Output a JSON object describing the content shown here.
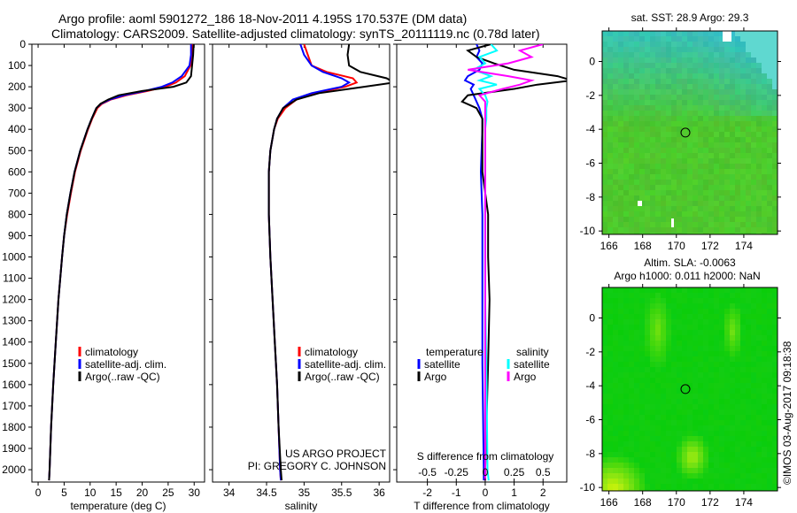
{
  "header": {
    "title_line1": "Argo profile: aoml 5901272_186 18-Nov-2011 4.195S 170.537E (DM data)",
    "title_line2": "Climatology: CARS2009. Satellite-adjusted climatology: synTS_20111119.nc (0.78d later)"
  },
  "credits": {
    "project": "US ARGO PROJECT",
    "pi": "PI: GREGORY C. JOHNSON",
    "stamp": "©IMOS 03-Aug-2017 09:18:38"
  },
  "colors": {
    "clim": "#ff0000",
    "sat": "#0000ff",
    "argo": "#000000",
    "sal_sat": "#00ffff",
    "sal_argo": "#ff00ff",
    "map_sst": "#22d060",
    "map_sla": "#20d800"
  },
  "chart_data": [
    {
      "type": "line",
      "id": "temperature",
      "xlabel": "temperature (deg C)",
      "ylabel": "depth",
      "xlim": [
        -1.2,
        32
      ],
      "ylim": [
        2058,
        0
      ],
      "xticks": [
        0,
        5,
        10,
        15,
        20,
        25,
        30
      ],
      "yticks": [
        0,
        100,
        200,
        300,
        400,
        500,
        600,
        700,
        800,
        900,
        1000,
        1100,
        1200,
        1300,
        1400,
        1500,
        1600,
        1700,
        1800,
        1900,
        2000
      ],
      "legend": [
        "climatology",
        "satellite-adj. clim.",
        "Argo(..raw -QC)"
      ],
      "depth": [
        0,
        50,
        100,
        150,
        180,
        200,
        220,
        240,
        260,
        280,
        300,
        350,
        400,
        500,
        600,
        700,
        800,
        900,
        1000,
        1200,
        1400,
        1600,
        1800,
        2000,
        2050
      ],
      "series": [
        {
          "name": "climatology",
          "color": "#ff0000",
          "values": [
            29.7,
            29.6,
            29.3,
            28.2,
            26.5,
            24.5,
            21,
            17,
            14,
            12.3,
            11.4,
            10.4,
            9.6,
            8.2,
            7.1,
            6.3,
            5.6,
            5.0,
            4.6,
            3.9,
            3.4,
            2.9,
            2.5,
            2.2,
            2.1
          ]
        },
        {
          "name": "satellite-adj. clim.",
          "color": "#0000ff",
          "values": [
            29.4,
            29.4,
            29.1,
            27.6,
            25.8,
            23.8,
            20.5,
            16.5,
            13.8,
            12.1,
            11.2,
            10.3,
            9.5,
            8.1,
            7.0,
            6.2,
            5.5,
            5.0,
            4.6,
            3.9,
            3.4,
            2.9,
            2.5,
            2.2,
            2.1
          ]
        },
        {
          "name": "Argo(..raw -QC)",
          "color": "#000000",
          "values": [
            29.9,
            29.8,
            29.6,
            29.4,
            28.5,
            26,
            20,
            15.5,
            13.5,
            12,
            11.2,
            10.3,
            9.5,
            8.1,
            7.0,
            6.2,
            5.5,
            5.0,
            4.6,
            3.9,
            3.4,
            2.9,
            2.5,
            2.2,
            2.1
          ]
        }
      ]
    },
    {
      "type": "line",
      "id": "salinity",
      "xlabel": "salinity",
      "ylabel": "depth",
      "xlim": [
        33.78,
        36.14
      ],
      "ylim": [
        2058,
        0
      ],
      "xticks": [
        34,
        34.5,
        35,
        35.5,
        36
      ],
      "legend": [
        "climatology",
        "satellite-adj. clim.",
        "Argo(..raw -QC)"
      ],
      "depth": [
        0,
        50,
        100,
        130,
        160,
        180,
        200,
        230,
        260,
        300,
        350,
        400,
        500,
        600,
        800,
        1000,
        1200,
        1400,
        1600,
        1800,
        2000,
        2050
      ],
      "series": [
        {
          "name": "climatology",
          "color": "#ff0000",
          "values": [
            35.0,
            35.05,
            35.1,
            35.3,
            35.65,
            35.7,
            35.55,
            35.15,
            34.9,
            34.75,
            34.65,
            34.6,
            34.55,
            34.53,
            34.53,
            34.55,
            34.58,
            34.61,
            34.64,
            34.66,
            34.68,
            34.69
          ]
        },
        {
          "name": "satellite-adj. clim.",
          "color": "#0000ff",
          "values": [
            34.95,
            35.0,
            35.1,
            35.25,
            35.5,
            35.6,
            35.5,
            35.1,
            34.85,
            34.72,
            34.64,
            34.6,
            34.55,
            34.53,
            34.53,
            34.55,
            34.58,
            34.61,
            34.64,
            34.66,
            34.68,
            34.69
          ]
        },
        {
          "name": "Argo(..raw -QC)",
          "color": "#000000",
          "values": [
            35.6,
            35.58,
            35.6,
            35.75,
            36.1,
            36.2,
            35.8,
            35.2,
            34.9,
            34.72,
            34.64,
            34.6,
            34.55,
            34.53,
            34.53,
            34.55,
            34.58,
            34.61,
            34.64,
            34.66,
            34.69,
            34.7
          ]
        }
      ]
    },
    {
      "type": "line",
      "id": "difference",
      "xlabel": "T difference from climatology",
      "x2label": "S difference from climatology",
      "xlim": [
        -3.06,
        2.82
      ],
      "x2lim": [
        -0.765,
        0.705
      ],
      "ylim": [
        2058,
        0
      ],
      "xticks": [
        -2,
        -1,
        0,
        1,
        2
      ],
      "x2ticks": [
        -0.5,
        -0.25,
        0,
        0.25,
        0.5
      ],
      "legend_headers": [
        "temperature",
        "salinity"
      ],
      "legend": [
        "satellite",
        "Argo",
        "satellite",
        "Argo"
      ],
      "depth": [
        0,
        30,
        60,
        90,
        120,
        150,
        170,
        190,
        210,
        240,
        270,
        300,
        350,
        400,
        600,
        800,
        1000,
        1200,
        1500,
        2000,
        2050
      ],
      "series": [
        {
          "name": "T satellite",
          "axis": "T",
          "color": "#0000ff",
          "values": [
            -0.3,
            -0.2,
            -0.3,
            -0.1,
            -0.2,
            -0.6,
            -0.7,
            -0.4,
            -0.5,
            -0.4,
            -0.3,
            -0.2,
            -0.1,
            -0.1,
            -0.15,
            -0.1,
            -0.1,
            -0.1,
            -0.1,
            -0.05,
            -0.05
          ]
        },
        {
          "name": "T Argo",
          "axis": "T",
          "color": "#000000",
          "values": [
            0.2,
            -0.6,
            -0.3,
            0.3,
            1.0,
            2.5,
            3,
            1.8,
            1.0,
            -0.6,
            -0.8,
            -0.3,
            -0.1,
            -0.1,
            -0.1,
            0.1,
            0.1,
            0.15,
            0.1,
            0.0,
            0.0
          ]
        },
        {
          "name": "S satellite",
          "axis": "S",
          "color": "#00ffff",
          "values": [
            0.05,
            0.1,
            -0.05,
            0.0,
            -0.1,
            0.05,
            -0.05,
            0.1,
            -0.05,
            0.0,
            0.02,
            0.01,
            0.01,
            0.0,
            0.0,
            0.0,
            0.0,
            0.0,
            0.01,
            0.02,
            0.03
          ]
        },
        {
          "name": "S Argo",
          "axis": "S",
          "color": "#ff00ff",
          "values": [
            0.5,
            0.3,
            0.4,
            0.2,
            -0.15,
            0.2,
            0.4,
            0.3,
            0.15,
            -0.05,
            0.0,
            0.0,
            0.0,
            0.0,
            0.0,
            0.0,
            0.0,
            0.0,
            0.0,
            0.0,
            0.0
          ]
        }
      ]
    },
    {
      "type": "heatmap",
      "id": "sst_map",
      "title": "sat. SST: 28.9 Argo: 29.3",
      "xlim": [
        165.6,
        176
      ],
      "ylim": [
        -10.2,
        1.8
      ],
      "xticks": [
        166,
        168,
        170,
        172,
        174
      ],
      "yticks": [
        0,
        -2,
        -4,
        -6,
        -8,
        -10
      ],
      "marker": {
        "lon": 170.537,
        "lat": -4.195
      }
    },
    {
      "type": "heatmap",
      "id": "sla_map",
      "title": "Altim. SLA: -0.0063",
      "subtitle": "Argo h1000: 0.011 h2000: NaN",
      "xlim": [
        165.6,
        176
      ],
      "ylim": [
        -10.2,
        1.8
      ],
      "xticks": [
        166,
        168,
        170,
        172,
        174
      ],
      "yticks": [
        0,
        -2,
        -4,
        -6,
        -8,
        -10
      ],
      "marker": {
        "lon": 170.537,
        "lat": -4.195
      }
    }
  ]
}
